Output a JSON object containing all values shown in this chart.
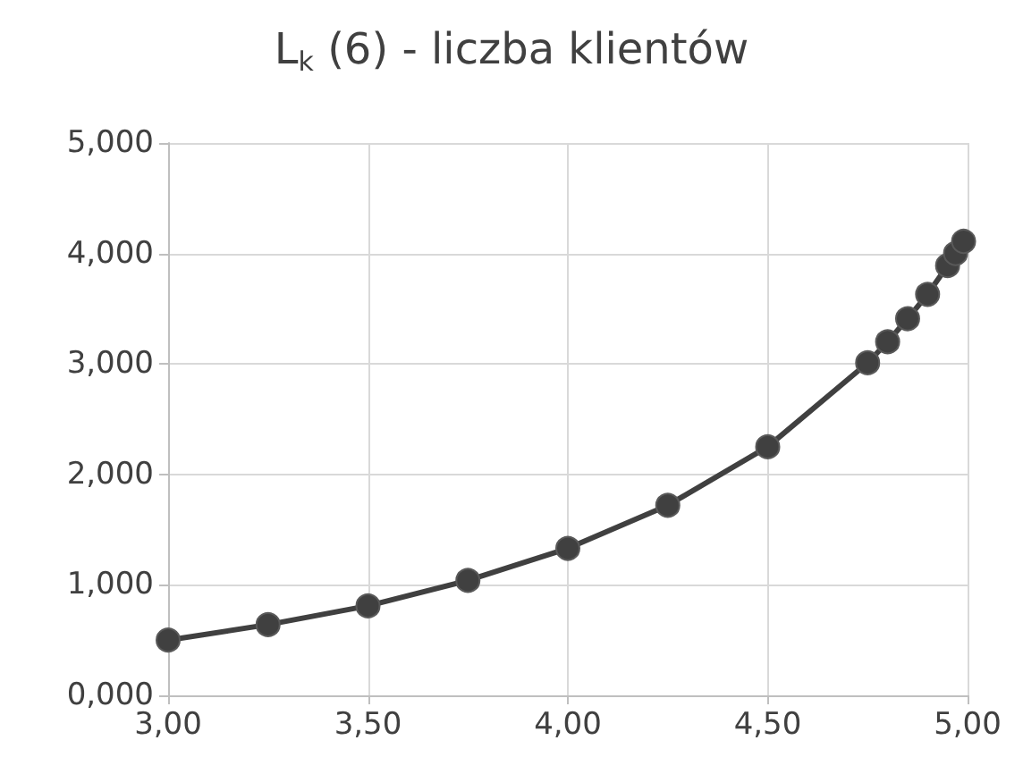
{
  "chart_data": {
    "type": "line",
    "title": "L$_{k}$ (6) - liczba klientów",
    "x": [
      3.0,
      3.25,
      3.5,
      3.75,
      4.0,
      4.25,
      4.5,
      4.75,
      4.8,
      4.85,
      4.9,
      4.95,
      4.97,
      4.99
    ],
    "series": [
      {
        "color": "#404040",
        "values": [
          0.5,
          0.64,
          0.81,
          1.04,
          1.33,
          1.72,
          2.25,
          3.01,
          3.2,
          3.41,
          3.63,
          3.89,
          4.0,
          4.11
        ]
      }
    ],
    "xlim": [
      3,
      5
    ],
    "xticks": [
      {
        "value": 3,
        "label": "3,00"
      },
      {
        "value": 3.5,
        "label": "3,50"
      },
      {
        "value": 4,
        "label": "4,00"
      },
      {
        "value": 4.5,
        "label": "4,50"
      },
      {
        "value": 5,
        "label": "5,00"
      }
    ],
    "ylim": [
      0,
      5
    ],
    "yticks": [
      {
        "value": 0,
        "label": "0,000"
      },
      {
        "value": 1,
        "label": "1,000"
      },
      {
        "value": 2,
        "label": "2,000"
      },
      {
        "value": 3,
        "label": "3,000"
      },
      {
        "value": 4,
        "label": "4,000"
      },
      {
        "value": 5,
        "label": "5,000"
      }
    ],
    "grid": true,
    "marker": "circle",
    "line_style": "solid"
  }
}
